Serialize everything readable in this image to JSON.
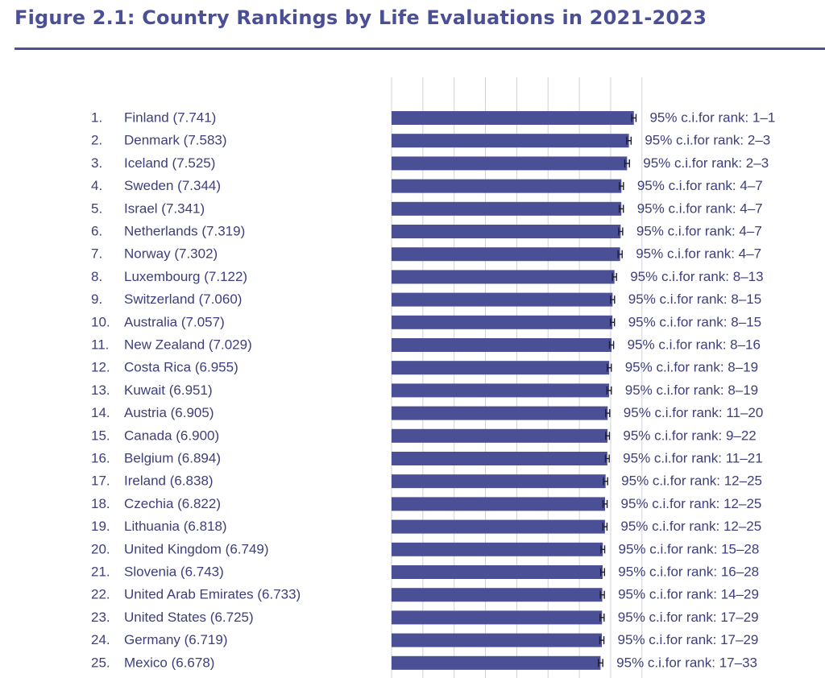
{
  "title": "Figure 2.1: Country Rankings by Life Evaluations in 2021-2023",
  "colors": {
    "bar": "#4b4f96",
    "text": "#3c3f7c",
    "grid": "#d0d0d8",
    "errorbar": "#1c1c2e"
  },
  "chart_data": {
    "type": "bar",
    "orientation": "horizontal",
    "title": "Figure 2.1: Country Rankings by Life Evaluations in 2021-2023",
    "xlim": [
      0,
      8
    ],
    "grid": true,
    "rows": [
      {
        "rank": "1.",
        "label": "Finland (7.741)",
        "value": 7.741,
        "err": 0.14,
        "ci": "95% c.i.for rank: 1–1"
      },
      {
        "rank": "2.",
        "label": "Denmark (7.583)",
        "value": 7.583,
        "err": 0.14,
        "ci": "95% c.i.for rank: 2–3"
      },
      {
        "rank": "3.",
        "label": "Iceland (7.525)",
        "value": 7.525,
        "err": 0.15,
        "ci": "95% c.i.for rank: 2–3"
      },
      {
        "rank": "4.",
        "label": "Sweden (7.344)",
        "value": 7.344,
        "err": 0.13,
        "ci": "95% c.i.for rank: 4–7"
      },
      {
        "rank": "5.",
        "label": "Israel (7.341)",
        "value": 7.341,
        "err": 0.13,
        "ci": "95% c.i.for rank: 4–7"
      },
      {
        "rank": "6.",
        "label": "Netherlands (7.319)",
        "value": 7.319,
        "err": 0.13,
        "ci": "95% c.i.for rank: 4–7"
      },
      {
        "rank": "7.",
        "label": "Norway (7.302)",
        "value": 7.302,
        "err": 0.13,
        "ci": "95% c.i.for rank: 4–7"
      },
      {
        "rank": "8.",
        "label": "Luxembourg (7.122)",
        "value": 7.122,
        "err": 0.13,
        "ci": "95% c.i.for rank: 8–13"
      },
      {
        "rank": "9.",
        "label": "Switzerland (7.060)",
        "value": 7.06,
        "err": 0.13,
        "ci": "95% c.i.for rank: 8–15"
      },
      {
        "rank": "10.",
        "label": "Australia (7.057)",
        "value": 7.057,
        "err": 0.13,
        "ci": "95% c.i.for rank: 8–15"
      },
      {
        "rank": "11.",
        "label": "New Zealand (7.029)",
        "value": 7.029,
        "err": 0.13,
        "ci": "95% c.i.for rank: 8–16"
      },
      {
        "rank": "12.",
        "label": "Costa Rica (6.955)",
        "value": 6.955,
        "err": 0.13,
        "ci": "95% c.i.for rank: 8–19"
      },
      {
        "rank": "13.",
        "label": "Kuwait (6.951)",
        "value": 6.951,
        "err": 0.14,
        "ci": "95% c.i.for rank: 8–19"
      },
      {
        "rank": "14.",
        "label": "Austria (6.905)",
        "value": 6.905,
        "err": 0.13,
        "ci": "95% c.i.for rank: 11–20"
      },
      {
        "rank": "15.",
        "label": "Canada (6.900)",
        "value": 6.9,
        "err": 0.12,
        "ci": "95% c.i.for rank: 9–22"
      },
      {
        "rank": "16.",
        "label": "Belgium (6.894)",
        "value": 6.894,
        "err": 0.12,
        "ci": "95% c.i.for rank: 11–21"
      },
      {
        "rank": "17.",
        "label": "Ireland (6.838)",
        "value": 6.838,
        "err": 0.13,
        "ci": "95% c.i.for rank: 12–25"
      },
      {
        "rank": "18.",
        "label": "Czechia (6.822)",
        "value": 6.822,
        "err": 0.13,
        "ci": "95% c.i.for rank: 12–25"
      },
      {
        "rank": "19.",
        "label": "Lithuania (6.818)",
        "value": 6.818,
        "err": 0.13,
        "ci": "95% c.i.for rank: 12–25"
      },
      {
        "rank": "20.",
        "label": "United Kingdom (6.749)",
        "value": 6.749,
        "err": 0.12,
        "ci": "95% c.i.for rank: 15–28"
      },
      {
        "rank": "21.",
        "label": "Slovenia (6.743)",
        "value": 6.743,
        "err": 0.12,
        "ci": "95% c.i.for rank: 16–28"
      },
      {
        "rank": "22.",
        "label": "United Arab Emirates (6.733)",
        "value": 6.733,
        "err": 0.13,
        "ci": "95% c.i.for rank: 14–29"
      },
      {
        "rank": "23.",
        "label": "United States (6.725)",
        "value": 6.725,
        "err": 0.13,
        "ci": "95% c.i.for rank: 17–29"
      },
      {
        "rank": "24.",
        "label": "Germany (6.719)",
        "value": 6.719,
        "err": 0.13,
        "ci": "95% c.i.for rank: 17–29"
      },
      {
        "rank": "25.",
        "label": "Mexico (6.678)",
        "value": 6.678,
        "err": 0.14,
        "ci": "95% c.i.for rank: 17–33"
      }
    ]
  }
}
